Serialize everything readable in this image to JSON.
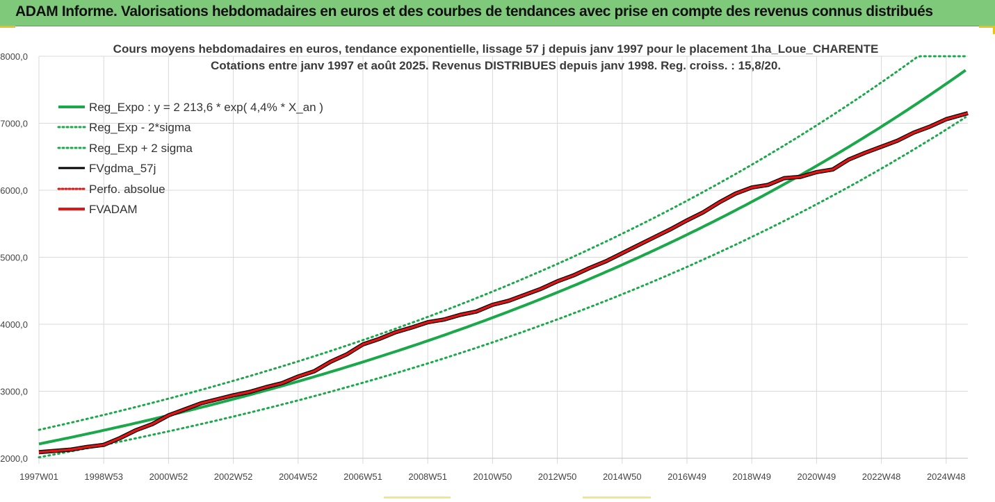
{
  "banner": {
    "title": "ADAM Informe. Valorisations hebdomadaires en euros et des courbes de tendances avec prise en compte des revenus connus distribués"
  },
  "colors": {
    "banner_bg": "#7fc97a",
    "trend": "#1aa84a",
    "gdma": "#000000",
    "adam": "#e01616",
    "perfo": "#e01616"
  },
  "chart_data": {
    "type": "line",
    "title": "Cours moyens hebdomadaires en euros, tendance exponentielle, lissage 57 j depuis janv 1997 pour le placement 1ha_Loue_CHARENTE",
    "subtitle": "Cotations entre janv 1997 et août 2025. Revenus DISTRIBUES depuis janv 1998. Reg. croiss. : 15,8/20.",
    "xlabel": "",
    "ylabel": "",
    "ylim": [
      2000,
      8000
    ],
    "y_ticks": [
      "2000,0",
      "3000,0",
      "4000,0",
      "5000,0",
      "6000,0",
      "7000,0",
      "8000,0"
    ],
    "y_tick_values": [
      2000,
      3000,
      4000,
      5000,
      6000,
      7000,
      8000
    ],
    "x_ticks": [
      "1997W01",
      "1998W53",
      "2000W52",
      "2002W52",
      "2004W52",
      "2006W51",
      "2008W51",
      "2010W50",
      "2012W50",
      "2014W50",
      "2016W49",
      "2018W49",
      "2020W49",
      "2022W48",
      "2024W48"
    ],
    "x_tick_years": [
      1997.0,
      1999.0,
      2001.0,
      2003.0,
      2005.0,
      2007.0,
      2009.0,
      2011.0,
      2013.0,
      2015.0,
      2017.0,
      2019.0,
      2021.0,
      2023.0,
      2025.0
    ],
    "xlim_years": [
      1997.0,
      2025.67
    ],
    "grid": true,
    "legend_position": "top-left",
    "legend": [
      {
        "label": "Reg_Expo : y = 2 213,6 * exp( 4,4% *  X_an )",
        "style": "solid-green"
      },
      {
        "label": "Reg_Exp - 2*sigma",
        "style": "dotted-green"
      },
      {
        "label": "Reg_Exp + 2 sigma",
        "style": "dotted-green"
      },
      {
        "label": "FVgdma_57j",
        "style": "solid-black"
      },
      {
        "label": "Perfo. absolue",
        "style": "dotted-red"
      },
      {
        "label": "FVADAM",
        "style": "solid-red"
      }
    ],
    "trend_model": {
      "a": 2213.6,
      "rate": 0.044,
      "lower_factor": 0.91,
      "upper_factor": 1.095,
      "upper_cap": 8000
    },
    "series": [
      {
        "name": "FVADAM",
        "x": [
          1997.0,
          1998.0,
          1998.5,
          1999.0,
          1999.5,
          2000.0,
          2000.5,
          2001.0,
          2001.5,
          2002.0,
          2002.5,
          2003.0,
          2003.5,
          2004.0,
          2004.5,
          2005.0,
          2005.5,
          2006.0,
          2006.5,
          2007.0,
          2007.5,
          2008.0,
          2008.5,
          2009.0,
          2009.5,
          2010.0,
          2010.5,
          2011.0,
          2011.5,
          2012.0,
          2012.5,
          2013.0,
          2013.5,
          2014.0,
          2014.5,
          2015.0,
          2015.5,
          2016.0,
          2016.5,
          2017.0,
          2017.5,
          2018.0,
          2018.5,
          2019.0,
          2019.5,
          2020.0,
          2020.5,
          2021.0,
          2021.5,
          2022.0,
          2022.5,
          2023.0,
          2023.5,
          2024.0,
          2024.5,
          2025.0,
          2025.67
        ],
        "values": [
          2090,
          2130,
          2170,
          2200,
          2300,
          2420,
          2510,
          2640,
          2730,
          2820,
          2880,
          2940,
          2990,
          3060,
          3120,
          3220,
          3300,
          3440,
          3550,
          3700,
          3780,
          3880,
          3950,
          4030,
          4070,
          4140,
          4190,
          4290,
          4350,
          4440,
          4530,
          4640,
          4730,
          4840,
          4940,
          5060,
          5180,
          5300,
          5420,
          5550,
          5670,
          5820,
          5950,
          6040,
          6080,
          6180,
          6200,
          6270,
          6310,
          6460,
          6560,
          6650,
          6740,
          6860,
          6950,
          7060,
          7150
        ]
      },
      {
        "name": "FVgdma_57j",
        "x": [
          1997.0,
          1998.0,
          1998.5,
          1999.0,
          1999.5,
          2000.0,
          2000.5,
          2001.0,
          2001.5,
          2002.0,
          2002.5,
          2003.0,
          2003.5,
          2004.0,
          2004.5,
          2005.0,
          2005.5,
          2006.0,
          2006.5,
          2007.0,
          2007.5,
          2008.0,
          2008.5,
          2009.0,
          2009.5,
          2010.0,
          2010.5,
          2011.0,
          2011.5,
          2012.0,
          2012.5,
          2013.0,
          2013.5,
          2014.0,
          2014.5,
          2015.0,
          2015.5,
          2016.0,
          2016.5,
          2017.0,
          2017.5,
          2018.0,
          2018.5,
          2019.0,
          2019.5,
          2020.0,
          2020.5,
          2021.0,
          2021.5,
          2022.0,
          2022.5,
          2023.0,
          2023.5,
          2024.0,
          2024.5,
          2025.0,
          2025.67
        ],
        "values": [
          2090,
          2130,
          2170,
          2200,
          2300,
          2420,
          2510,
          2640,
          2730,
          2820,
          2880,
          2940,
          2990,
          3060,
          3120,
          3220,
          3300,
          3440,
          3550,
          3700,
          3780,
          3880,
          3950,
          4030,
          4070,
          4140,
          4190,
          4290,
          4350,
          4440,
          4530,
          4640,
          4730,
          4840,
          4940,
          5060,
          5180,
          5300,
          5420,
          5550,
          5670,
          5820,
          5950,
          6040,
          6080,
          6180,
          6200,
          6270,
          6310,
          6460,
          6560,
          6650,
          6740,
          6860,
          6950,
          7060,
          7150
        ]
      }
    ]
  }
}
